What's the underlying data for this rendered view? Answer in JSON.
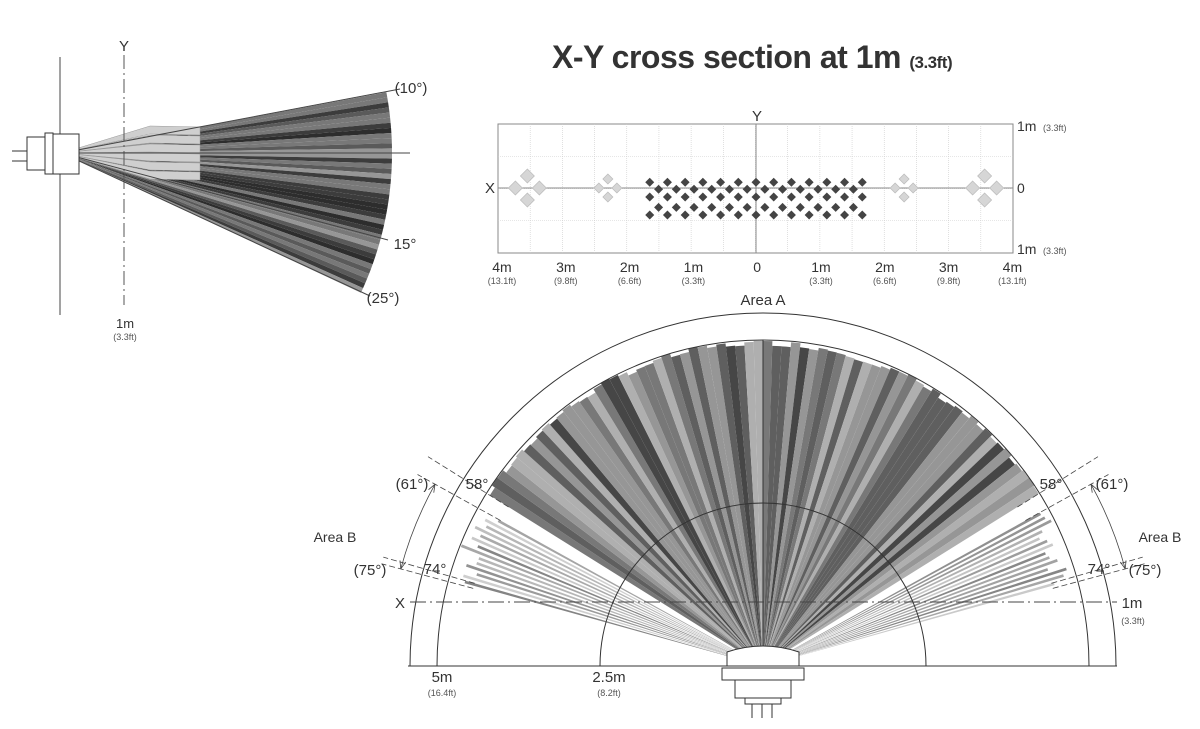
{
  "side_view": {
    "y_axis": "Y",
    "angle_top": "(10°)",
    "angle_mid": "15°",
    "angle_bottom": "(25°)",
    "distance": "1m",
    "distance_ft": "(3.3ft)"
  },
  "cross_section": {
    "title": "X-Y cross section at 1m",
    "title_ft": "(3.3ft)",
    "x_axis": "X",
    "y_axis": "Y",
    "right_labels": [
      {
        "m": "1m",
        "ft": "(3.3ft)"
      },
      {
        "m": "0",
        "ft": ""
      },
      {
        "m": "1m",
        "ft": "(3.3ft)"
      }
    ],
    "bottom_labels": [
      {
        "m": "4m",
        "ft": "(13.1ft)"
      },
      {
        "m": "3m",
        "ft": "(9.8ft)"
      },
      {
        "m": "2m",
        "ft": "(6.6ft)"
      },
      {
        "m": "1m",
        "ft": "(3.3ft)"
      },
      {
        "m": "0",
        "ft": ""
      },
      {
        "m": "1m",
        "ft": "(3.3ft)"
      },
      {
        "m": "2m",
        "ft": "(6.6ft)"
      },
      {
        "m": "3m",
        "ft": "(9.8ft)"
      },
      {
        "m": "4m",
        "ft": "(13.1ft)"
      }
    ],
    "light_spot_groups_m": [
      {
        "x": -3.55,
        "y": 0,
        "size": "large"
      },
      {
        "x": -2.3,
        "y": 0,
        "size": "small"
      },
      {
        "x": 2.3,
        "y": 0,
        "size": "small"
      },
      {
        "x": 3.55,
        "y": 0,
        "size": "large"
      }
    ],
    "dark_spot_extent_m": [
      -1.65,
      1.65
    ],
    "colors": {
      "dark_spot": "#444444",
      "light_spot": "#d6d6d6"
    }
  },
  "top_view": {
    "area_a": "Area A",
    "area_b_left": "Area B",
    "area_b_right": "Area B",
    "left": {
      "inner_a": "58°",
      "outer_a": "(61°)",
      "inner_b": "74°",
      "outer_b": "(75°)"
    },
    "right": {
      "inner_a": "58°",
      "outer_a": "(61°)",
      "inner_b": "74°",
      "outer_b": "(75°)"
    },
    "x_axis": "X",
    "x_line_m": "1m",
    "x_line_ft": "(3.3ft)",
    "r_outer": "5m",
    "r_outer_ft": "(16.4ft)",
    "r_inner": "2.5m",
    "r_inner_ft": "(8.2ft)",
    "area_a_half_angle_deg": 58,
    "area_b_range_deg": [
      61,
      75
    ]
  }
}
